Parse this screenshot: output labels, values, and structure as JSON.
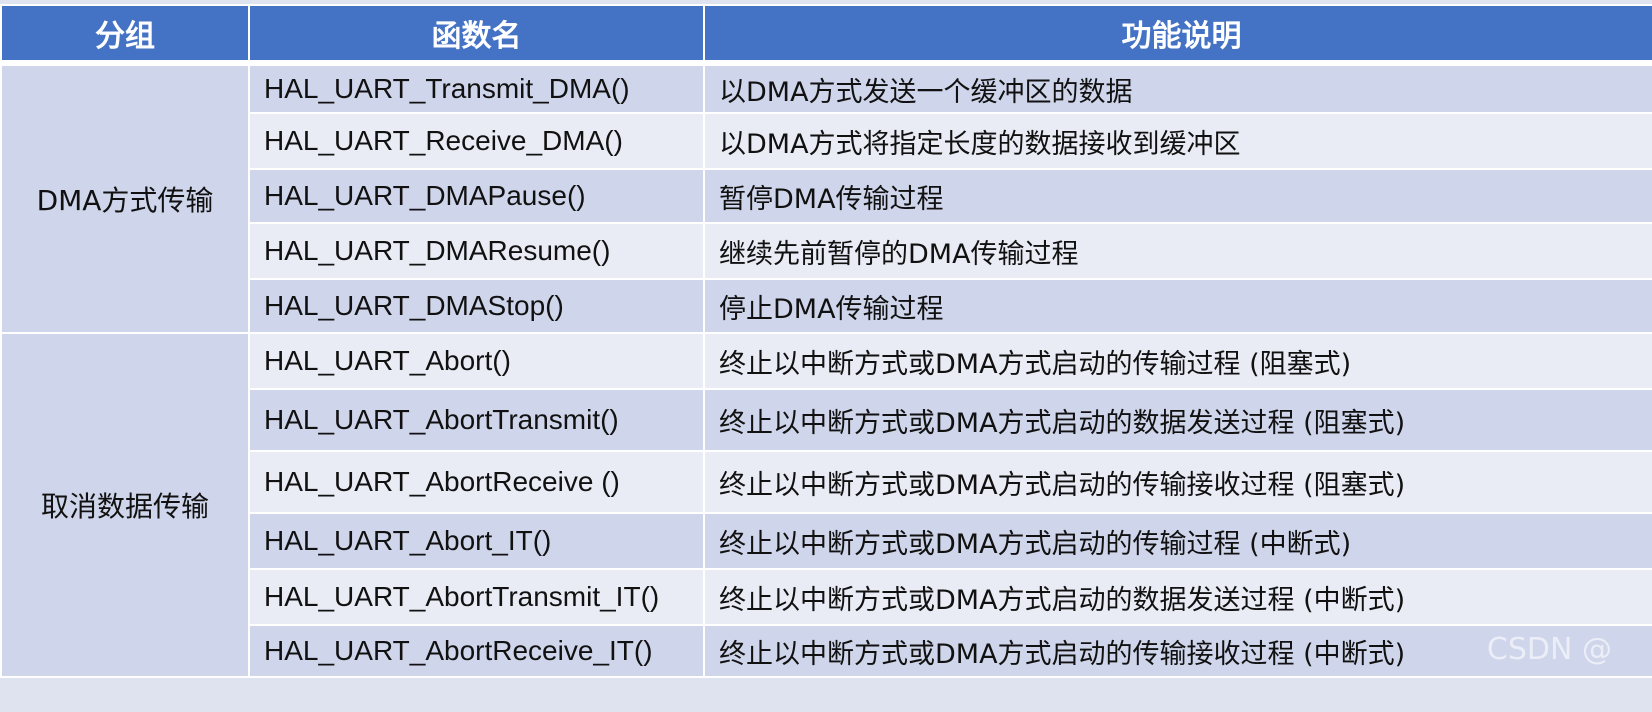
{
  "headers": [
    "分组",
    "函数名",
    "功能说明"
  ],
  "groups": [
    {
      "name": "DMA方式传输",
      "rows": [
        {
          "fn": "HAL_UART_Transmit_DMA()",
          "desc": "以DMA方式发送一个缓冲区的数据"
        },
        {
          "fn": "HAL_UART_Receive_DMA()",
          "desc": "以DMA方式将指定长度的数据接收到缓冲区"
        },
        {
          "fn": "HAL_UART_DMAPause()",
          "desc": "暂停DMA传输过程"
        },
        {
          "fn": "HAL_UART_DMAResume()",
          "desc": "继续先前暂停的DMA传输过程"
        },
        {
          "fn": "HAL_UART_DMAStop()",
          "desc": "停止DMA传输过程"
        }
      ]
    },
    {
      "name": "取消数据传输",
      "rows": [
        {
          "fn": "HAL_UART_Abort()",
          "desc": "终止以中断方式或DMA方式启动的传输过程 (阻塞式)"
        },
        {
          "fn": "HAL_UART_AbortTransmit()",
          "desc": "终止以中断方式或DMA方式启动的数据发送过程 (阻塞式)"
        },
        {
          "fn": "HAL_UART_AbortReceive ()",
          "desc": "终止以中断方式或DMA方式启动的传输接收过程 (阻塞式)"
        },
        {
          "fn": "HAL_UART_Abort_IT()",
          "desc": "终止以中断方式或DMA方式启动的传输过程 (中断式)"
        },
        {
          "fn": "HAL_UART_AbortTransmit_IT()",
          "desc": "终止以中断方式或DMA方式启动的数据发送过程 (中断式)"
        },
        {
          "fn": "HAL_UART_AbortReceive_IT()",
          "desc": "终止以中断方式或DMA方式启动的传输接收过程 (中断式)"
        }
      ]
    }
  ],
  "watermark": "CSDN @",
  "colors": {
    "header": "#4472C4",
    "row_dark": "#CFD5EA",
    "row_light": "#E9EBF5"
  }
}
